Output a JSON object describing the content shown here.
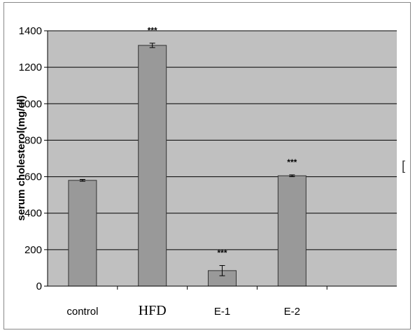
{
  "chart_data": {
    "type": "bar",
    "categories": [
      "control",
      "HFD",
      "E-1",
      "E-2"
    ],
    "values": [
      580,
      1320,
      85,
      605
    ],
    "errors": [
      5,
      12,
      28,
      5
    ],
    "annotations": [
      "",
      "***",
      "***",
      "***"
    ],
    "ylabel": "serum cholesterol(mg/dl)",
    "ylim": [
      0,
      1400
    ],
    "yticks": [
      0,
      200,
      400,
      600,
      800,
      1000,
      1200,
      1400
    ],
    "grid": true,
    "colors": {
      "plot_background": "#c0c0c0",
      "bar_fill": "#999999",
      "bar_stroke": "#333333",
      "gridline": "#000000"
    }
  }
}
